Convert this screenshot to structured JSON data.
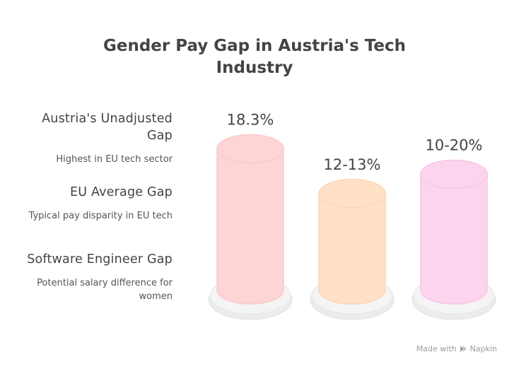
{
  "title": "Gender Pay Gap in Austria's Tech Industry",
  "chart_data": {
    "type": "bar",
    "categories": [
      "Austria's Unadjusted Gap",
      "EU Average Gap",
      "Software Engineer Gap"
    ],
    "descriptions": [
      "Highest in EU tech sector",
      "Typical pay disparity in EU tech",
      "Potential salary difference for women"
    ],
    "values": [
      18.3,
      12.5,
      15
    ],
    "value_labels": [
      "18.3%",
      "12-13%",
      "10-20%"
    ],
    "colors": [
      "#fdd5d5",
      "#ffe1c8",
      "#fcd4ee"
    ],
    "rim_colors": [
      "#f9caca",
      "#fdd6b4",
      "#f8c4e6"
    ]
  },
  "footer": {
    "made_with": "Made with",
    "brand": "Napkin"
  }
}
